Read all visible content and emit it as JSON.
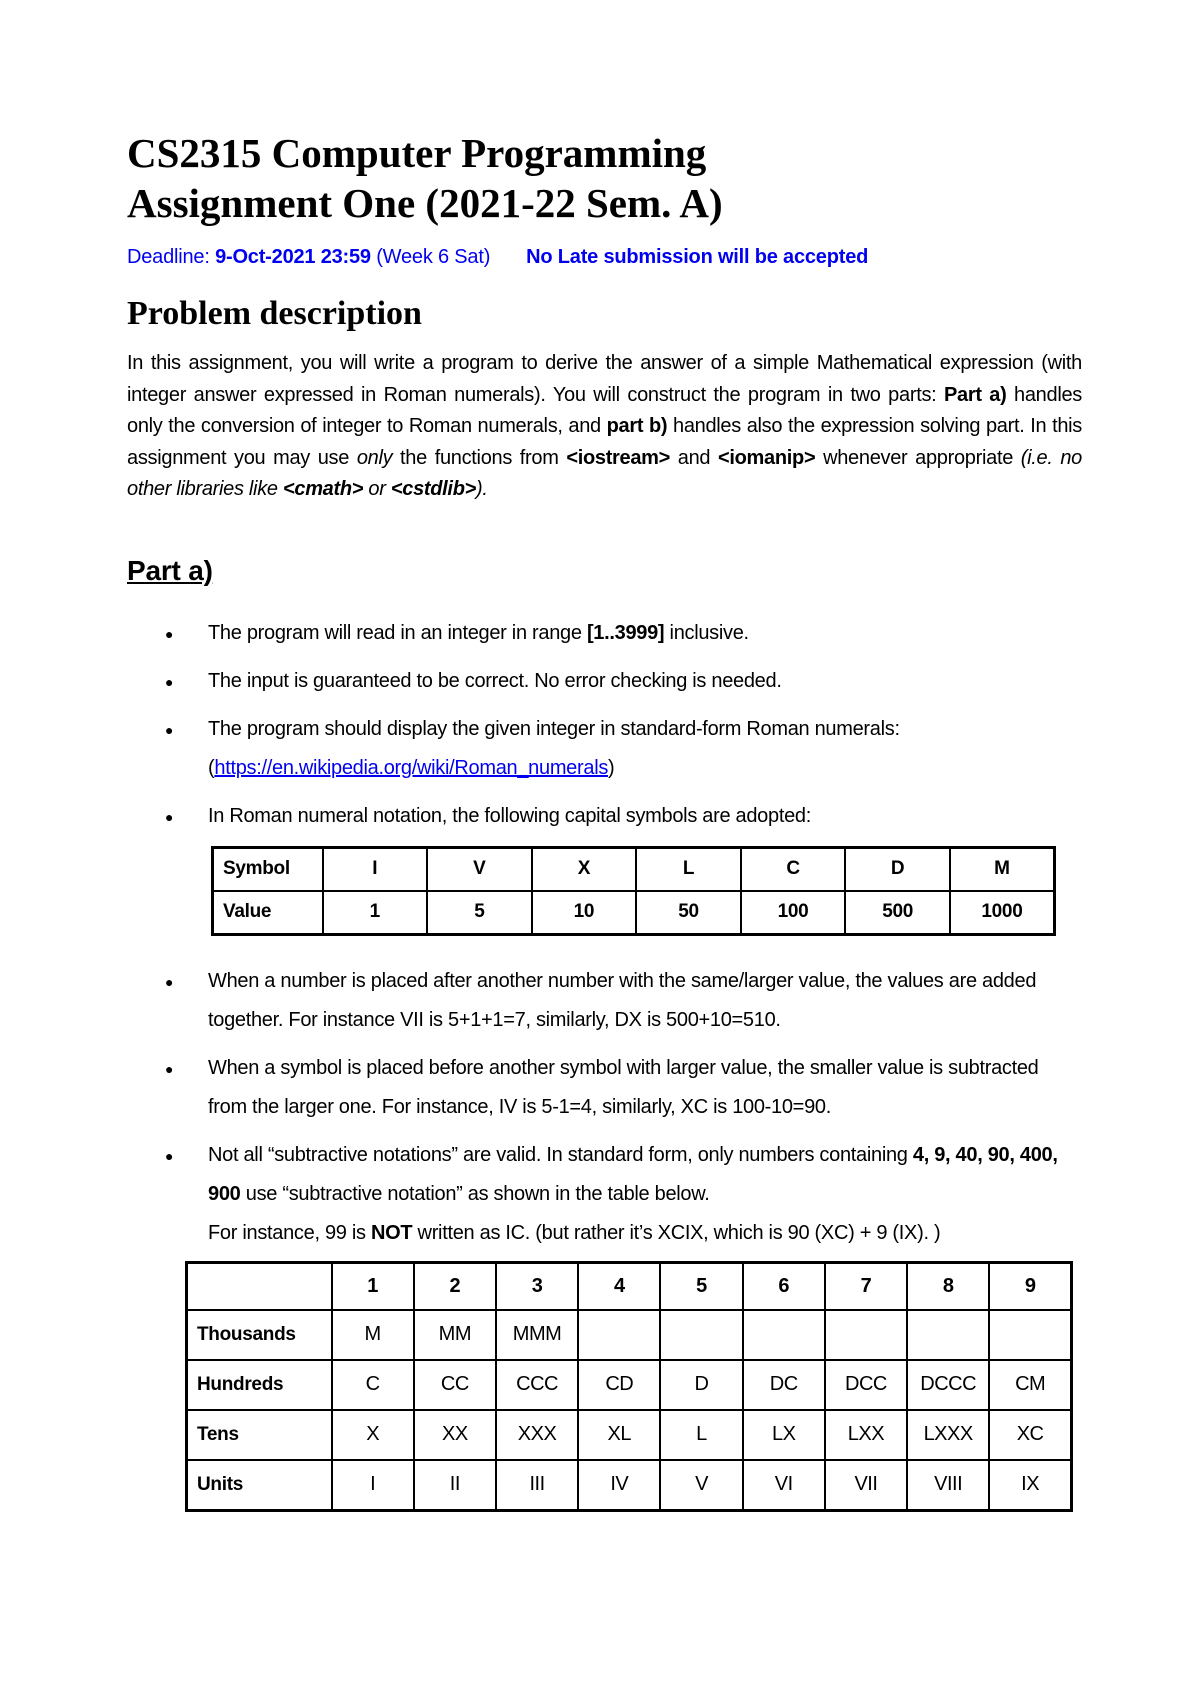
{
  "title": {
    "line1": "CS2315 Computer Programming",
    "line2": "Assignment One (2021-22 Sem. A)"
  },
  "deadline": {
    "label": "Deadline: ",
    "datetime": "9-Oct-2021 23:59",
    "week": " (Week 6 Sat)",
    "notice": "No Late submission will be accepted",
    "color": "#0101f0"
  },
  "problem": {
    "heading": "Problem description",
    "paragraph": [
      {
        "t": "In this assignment, you will write a program to derive the answer of a simple Mathematical expression (with integer answer expressed in Roman numerals). You will construct the program in two parts: "
      },
      {
        "t": "Part a)",
        "b": true
      },
      {
        "t": " handles only the conversion of integer to Roman numerals, and "
      },
      {
        "t": "part b)",
        "b": true
      },
      {
        "t": " handles also the expression solving part. In this assignment you may use "
      },
      {
        "t": "only",
        "i": true
      },
      {
        "t": " the functions from "
      },
      {
        "t": "<iostream>",
        "b": true
      },
      {
        "t": " and "
      },
      {
        "t": "<iomanip>",
        "b": true
      },
      {
        "t": " whenever appropriate "
      },
      {
        "t": "(i.e. no other libraries like ",
        "i": true
      },
      {
        "t": "<cmath>",
        "b": true,
        "i": true
      },
      {
        "t": " or ",
        "i": true
      },
      {
        "t": "<cstdlib>",
        "b": true,
        "i": true
      },
      {
        "t": ").",
        "i": true
      }
    ]
  },
  "part_a": {
    "heading": "Part a)",
    "bullet_glyph": "●",
    "bullets": [
      [
        {
          "t": "The program will read in an integer in range "
        },
        {
          "t": "[1..3999]",
          "b": true
        },
        {
          "t": " inclusive."
        }
      ],
      [
        {
          "t": "The input is guaranteed to be correct. No error checking is needed."
        }
      ],
      [
        {
          "t": "The program should display the given integer in standard-form Roman numerals:"
        },
        {
          "t": "(",
          "br": true
        },
        {
          "t": "https://en.wikipedia.org/wiki/Roman_numerals",
          "link": true
        },
        {
          "t": ")"
        }
      ],
      [
        {
          "t": "In Roman numeral notation, the following capital symbols are adopted:"
        }
      ],
      [
        {
          "t": "When a number is placed after another number with the same/larger value, the values are added together. For instance VII is 5+1+1=7, similarly, DX is 500+10=510."
        }
      ],
      [
        {
          "t": "When a symbol is placed before another symbol with larger value, the smaller value is subtracted from the larger one. For instance, IV is 5-1=4, similarly, XC is 100-10=90."
        }
      ],
      [
        {
          "t": "Not all “subtractive notations” are valid. In standard form, only numbers containing "
        },
        {
          "t": "4, 9, 40, 90, 400, 900",
          "b": true
        },
        {
          "t": " use “subtractive notation” as shown in the table below."
        },
        {
          "t": "For instance, 99 is ",
          "br": true
        },
        {
          "t": "NOT",
          "b": true
        },
        {
          "t": " written as IC. (but rather it’s XCIX, which is 90 (XC) + 9 (IX). )"
        }
      ]
    ]
  },
  "symbol_table": {
    "rows": [
      [
        "Symbol",
        "I",
        "V",
        "X",
        "L",
        "C",
        "D",
        "M"
      ],
      [
        "Value",
        "1",
        "5",
        "10",
        "50",
        "100",
        "500",
        "1000"
      ]
    ]
  },
  "numeral_table": {
    "header": [
      "",
      "1",
      "2",
      "3",
      "4",
      "5",
      "6",
      "7",
      "8",
      "9"
    ],
    "rows": [
      {
        "label": "Thousands",
        "cells": [
          "M",
          "MM",
          "MMM",
          "",
          "",
          "",
          "",
          "",
          ""
        ]
      },
      {
        "label": "Hundreds",
        "cells": [
          "C",
          "CC",
          "CCC",
          "CD",
          "D",
          "DC",
          "DCC",
          "DCCC",
          "CM"
        ]
      },
      {
        "label": "Tens",
        "cells": [
          "X",
          "XX",
          "XXX",
          "XL",
          "L",
          "LX",
          "LXX",
          "LXXX",
          "XC"
        ]
      },
      {
        "label": "Units",
        "cells": [
          "I",
          "II",
          "III",
          "IV",
          "V",
          "VI",
          "VII",
          "VIII",
          "IX"
        ]
      }
    ]
  }
}
